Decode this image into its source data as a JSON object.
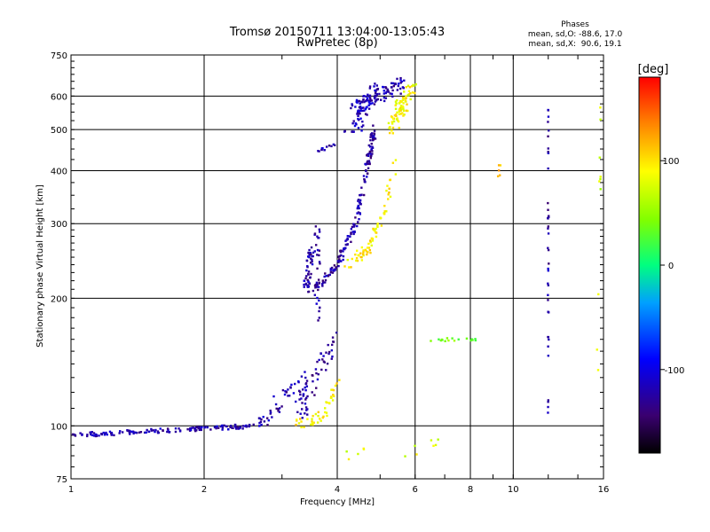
{
  "chart_data": {
    "type": "scatter",
    "title": "Tromsø 20150711 13:04:00-13:05:43",
    "subtitle": "RwPretec (8p)",
    "xlabel": "Frequency [MHz]",
    "ylabel": "Stationary phase Virtual Height [km]",
    "x_scale": "log",
    "y_scale": "log",
    "xlim": [
      1,
      16
    ],
    "ylim": [
      75,
      750
    ],
    "x_ticks": [
      1,
      2,
      4,
      6,
      8,
      10,
      16
    ],
    "y_ticks": [
      75,
      100,
      200,
      300,
      400,
      500,
      600,
      750
    ],
    "grid_x": [
      2,
      4,
      6,
      8,
      10
    ],
    "grid_y": [
      100,
      200,
      300,
      400,
      500,
      600
    ],
    "phases_legend": {
      "title": "Phases",
      "line_o": "mean, sd,O: -88.6, 17.0",
      "line_x": "mean, sd,X:  90.6, 19.1"
    },
    "colorbar": {
      "label": "[deg]",
      "range": [
        -180,
        180
      ],
      "ticks": [
        100,
        0,
        -100
      ]
    },
    "series": [
      {
        "name": "baseline E-layer trace",
        "phase": -120,
        "segments": [
          [
            1.0,
            95,
            2.6,
            100
          ]
        ],
        "count": 150,
        "jitter": 0.012
      },
      {
        "name": "rising trace",
        "phase": -120,
        "segments": [
          [
            2.6,
            100,
            3.4,
            130
          ]
        ],
        "count": 45,
        "jitter": 0.05
      },
      {
        "name": "O-mode trace lower",
        "phase": -125,
        "segments": [
          [
            3.3,
            110,
            3.9,
            160
          ]
        ],
        "count": 60,
        "jitter": 0.06
      },
      {
        "name": "O-mode trace",
        "phase": -125,
        "segments": [
          [
            3.55,
            210,
            4.0,
            240
          ],
          [
            4.0,
            240,
            4.4,
            300
          ],
          [
            4.4,
            300,
            4.7,
            420
          ],
          [
            4.7,
            420,
            4.85,
            500
          ]
        ],
        "count": 170,
        "jitter": 0.025
      },
      {
        "name": "O-mode vertical branch",
        "phase": -125,
        "segments": [
          [
            3.6,
            180,
            3.6,
            290
          ],
          [
            3.4,
            210,
            3.5,
            260
          ]
        ],
        "count": 80,
        "jitter": 0.03
      },
      {
        "name": "O-mode F2 top",
        "phase": -120,
        "segments": [
          [
            4.3,
            560,
            5.6,
            640
          ]
        ],
        "count": 90,
        "jitter": 0.04
      },
      {
        "name": "O-mode cluster 500-600",
        "phase": -115,
        "segments": [
          [
            4.4,
            510,
            4.9,
            630
          ]
        ],
        "count": 50,
        "jitter": 0.05
      },
      {
        "name": "O-mode 440-460",
        "phase": -120,
        "segments": [
          [
            3.6,
            445,
            3.95,
            460
          ],
          [
            4.1,
            495,
            4.5,
            500
          ]
        ],
        "count": 20,
        "jitter": 0.01
      },
      {
        "name": "X-mode trace lower",
        "phase": 95,
        "segments": [
          [
            3.2,
            100,
            3.7,
            105
          ],
          [
            3.7,
            105,
            4.0,
            125
          ]
        ],
        "count": 45,
        "jitter": 0.03
      },
      {
        "name": "X-mode trace upper",
        "phase": 95,
        "segments": [
          [
            4.2,
            240,
            4.7,
            260
          ],
          [
            4.7,
            260,
            5.1,
            320
          ],
          [
            5.1,
            320,
            5.4,
            420
          ]
        ],
        "count": 70,
        "jitter": 0.03
      },
      {
        "name": "X-mode top cluster",
        "phase": 90,
        "segments": [
          [
            5.3,
            510,
            5.9,
            620
          ]
        ],
        "count": 80,
        "jitter": 0.05
      },
      {
        "name": "spread 7-8.5 MHz",
        "phase": 40,
        "segments": [
          [
            6.5,
            160,
            8.5,
            160
          ]
        ],
        "count": 18,
        "jitter": 0.01
      },
      {
        "name": "vertical line 12 MHz",
        "phase": -125,
        "segments": [
          [
            12.0,
            95,
            12.0,
            600
          ]
        ],
        "count": 40,
        "jitter": 0.005
      },
      {
        "name": "scatter 15 MHz",
        "phase": 70,
        "segments": [
          [
            15.5,
            120,
            15.8,
            620
          ]
        ],
        "count": 10,
        "jitter": 0.01
      },
      {
        "name": "sparse low points",
        "phase": 80,
        "segments": [
          [
            4.2,
            85,
            4.8,
            90
          ],
          [
            5.6,
            85,
            6.8,
            92
          ]
        ],
        "count": 12,
        "jitter": 0.03
      },
      {
        "name": "scatter 9 MHz",
        "phase": 120,
        "segments": [
          [
            9.0,
            360,
            9.5,
            430
          ]
        ],
        "count": 5,
        "jitter": 0.02
      }
    ]
  }
}
